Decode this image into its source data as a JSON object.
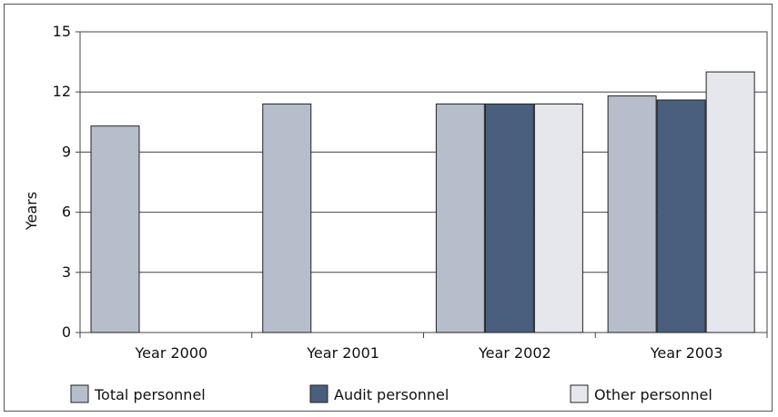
{
  "chart_data": {
    "type": "bar",
    "title": "",
    "ylabel": "Years",
    "xlabel": "",
    "ylim": [
      0,
      15
    ],
    "yticks": [
      0,
      3,
      6,
      9,
      12,
      15
    ],
    "grid": true,
    "legend_position": "bottom",
    "categories": [
      "Year 2000",
      "Year 2001",
      "Year 2002",
      "Year 2003"
    ],
    "series": [
      {
        "name": "Total personnel",
        "color": "#b6bdcb",
        "values": [
          10.3,
          11.4,
          11.4,
          11.8
        ]
      },
      {
        "name": "Audit personnel",
        "color": "#4a5e7e",
        "values": [
          null,
          null,
          11.4,
          11.6
        ]
      },
      {
        "name": "Other personnel",
        "color": "#e6e7ec",
        "values": [
          null,
          null,
          11.4,
          13.0
        ]
      }
    ]
  }
}
